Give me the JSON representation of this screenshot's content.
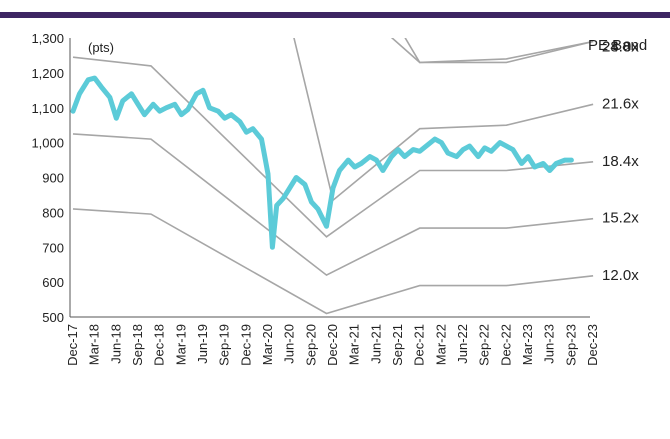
{
  "colors": {
    "accent_bar": "#3d2663",
    "price_line": "#5ccbd8",
    "band_line": "#a6a6a6",
    "axis": "#555555"
  },
  "chart_data": {
    "type": "line",
    "ylabel": "(pts)",
    "ylim": [
      500,
      1300
    ],
    "yticks": [
      500,
      600,
      700,
      800,
      900,
      1000,
      1100,
      1200,
      1300
    ],
    "ytick_labels": [
      "500",
      "600",
      "700",
      "800",
      "900",
      "1,000",
      "1,100",
      "1,200",
      "1,300"
    ],
    "x_ticks": [
      "Dec-17",
      "Mar-18",
      "Jun-18",
      "Sep-18",
      "Dec-18",
      "Mar-19",
      "Jun-19",
      "Sep-19",
      "Dec-19",
      "Mar-20",
      "Jun-20",
      "Sep-20",
      "Dec-20",
      "Mar-21",
      "Jun-21",
      "Sep-21",
      "Dec-21",
      "Mar-22",
      "Jun-22",
      "Sep-22",
      "Dec-22",
      "Mar-23",
      "Jun-23",
      "Sep-23",
      "Dec-23"
    ],
    "legend_title": "PE Band",
    "bands": [
      {
        "name": "28.0x",
        "x": [
          0,
          9,
          12,
          16,
          20,
          24
        ],
        "y": [
          2250,
          2090,
          1650,
          1230,
          1240,
          1290
        ]
      },
      {
        "name": "24.8x",
        "x": [
          0,
          9,
          12,
          16,
          20,
          24
        ],
        "y": [
          1990,
          1850,
          1450,
          1230,
          1230,
          1290
        ]
      },
      {
        "name": "21.6x",
        "x": [
          0,
          9,
          12,
          16,
          20,
          24
        ],
        "y": [
          1735,
          1610,
          835,
          1040,
          1050,
          1110
        ]
      },
      {
        "name": "18.4x",
        "x": [
          0,
          3.6,
          11.7,
          16,
          20,
          24
        ],
        "y": [
          1245,
          1220,
          730,
          920,
          920,
          945
        ]
      },
      {
        "name": "15.2x",
        "x": [
          0,
          3.6,
          11.7,
          16,
          20,
          24
        ],
        "y": [
          1025,
          1010,
          620,
          755,
          755,
          782
        ]
      },
      {
        "name": "12.0x",
        "x": [
          0,
          3.6,
          11.7,
          16,
          20,
          24
        ],
        "y": [
          810,
          795,
          510,
          590,
          590,
          618
        ]
      }
    ],
    "index_series": {
      "x": [
        0,
        0.3,
        0.7,
        1.0,
        1.3,
        1.7,
        2.0,
        2.3,
        2.7,
        3.0,
        3.3,
        3.7,
        4.0,
        4.3,
        4.7,
        5.0,
        5.3,
        5.7,
        6.0,
        6.3,
        6.7,
        7.0,
        7.3,
        7.7,
        8.0,
        8.3,
        8.7,
        9.0,
        9.2,
        9.4,
        9.7,
        10.0,
        10.3,
        10.7,
        11.0,
        11.3,
        11.7,
        12.0,
        12.3,
        12.7,
        13.0,
        13.3,
        13.7,
        14.0,
        14.3,
        14.7,
        15.0,
        15.3,
        15.7,
        16.0,
        16.3,
        16.7,
        17.0,
        17.3,
        17.7,
        18.0,
        18.3,
        18.7,
        19.0,
        19.3,
        19.7,
        20.0,
        20.3,
        20.7,
        21.0,
        21.3,
        21.7,
        22.0,
        22.3,
        22.7,
        23.0
      ],
      "y": [
        1090,
        1140,
        1180,
        1185,
        1160,
        1130,
        1070,
        1120,
        1140,
        1110,
        1080,
        1110,
        1090,
        1100,
        1110,
        1080,
        1095,
        1140,
        1150,
        1100,
        1090,
        1070,
        1080,
        1060,
        1030,
        1040,
        1010,
        910,
        700,
        820,
        840,
        870,
        900,
        880,
        830,
        810,
        760,
        870,
        920,
        950,
        930,
        940,
        960,
        950,
        920,
        960,
        980,
        960,
        980,
        975,
        990,
        1010,
        1000,
        970,
        960,
        980,
        990,
        960,
        985,
        975,
        1000,
        990,
        980,
        940,
        960,
        930,
        940,
        920,
        940,
        950,
        950
      ]
    },
    "grid": false,
    "legend_placement": "right"
  }
}
